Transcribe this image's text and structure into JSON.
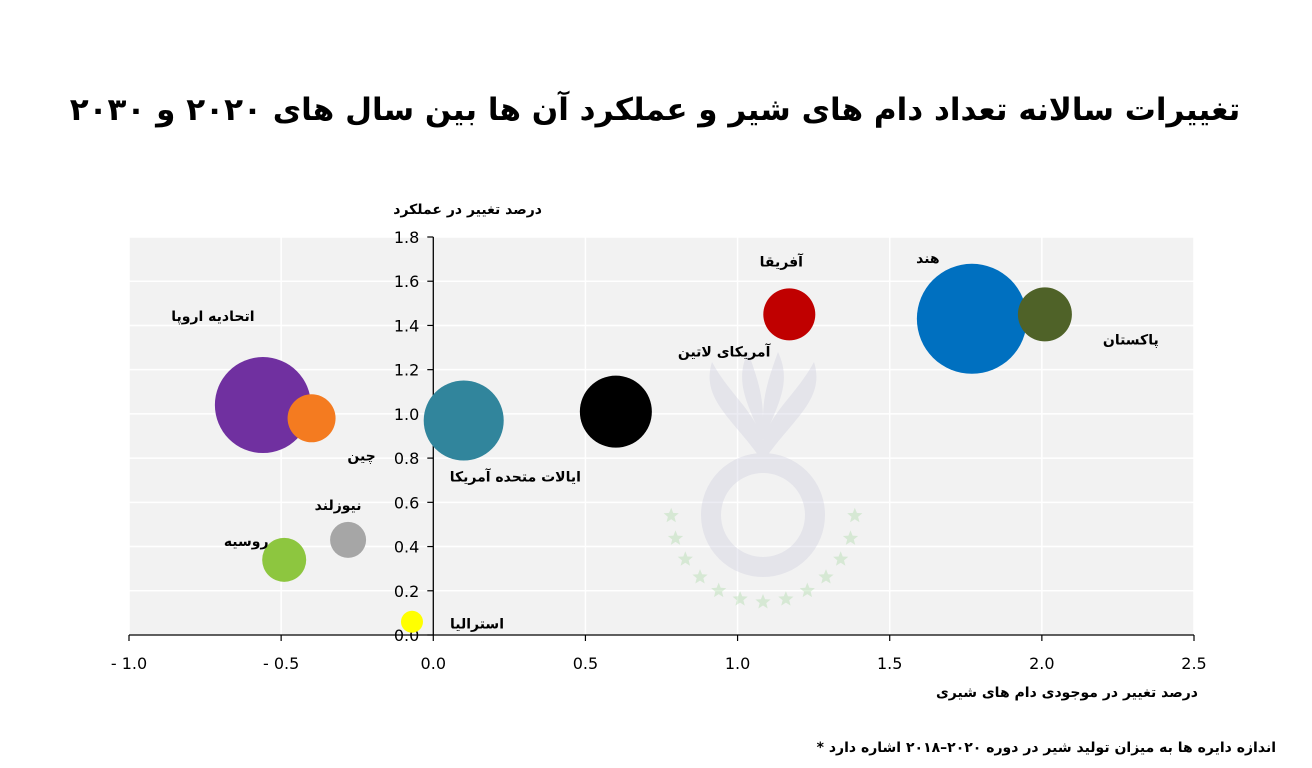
{
  "chart_data": {
    "type": "scatter",
    "subtype": "bubble",
    "title": "تغییرات سالانه  تعداد دام های شیر و عملکرد آن ها بین سال های ۲۰۲۰ و ۲۰۳۰",
    "xlabel": "درصد تغییر در موجودی دام های شیری",
    "ylabel": "درصد تغییر در عملکرد",
    "xlim": [
      -1.0,
      2.5
    ],
    "ylim": [
      0.0,
      1.8
    ],
    "x_ticks": [
      "- 1.0",
      "- 0.5",
      "0.0",
      "0.5",
      "1.0",
      "1.5",
      "2.0",
      "2.5"
    ],
    "y_ticks": [
      "0.0",
      "0.2",
      "0.4",
      "0.6",
      "0.8",
      "1.0",
      "1.2",
      "1.4",
      "1.6",
      "1.8"
    ],
    "grid": true,
    "footnote": "* اندازه دایره ها به میزان تولید شیر در دوره ۲۰۲۰–۲۰۱۸ اشاره دارد",
    "points": [
      {
        "name": "اتحادیه اروپا",
        "x": -0.56,
        "y": 1.04,
        "size": 48,
        "color": "#7030a0"
      },
      {
        "name": "چین",
        "x": -0.4,
        "y": 0.98,
        "size": 24,
        "color": "#f47b20"
      },
      {
        "name": "نیوزلند",
        "x": -0.28,
        "y": 0.43,
        "size": 18,
        "color": "#a6a6a6"
      },
      {
        "name": "روسیه",
        "x": -0.49,
        "y": 0.34,
        "size": 22,
        "color": "#8dc63f"
      },
      {
        "name": "استرالیا",
        "x": -0.07,
        "y": 0.06,
        "size": 11,
        "color": "#ffff00"
      },
      {
        "name": "ایالات متحده آمریکا",
        "x": 0.1,
        "y": 0.97,
        "size": 40,
        "color": "#31859c"
      },
      {
        "name": "آمریکای لاتین",
        "x": 0.6,
        "y": 1.01,
        "size": 36,
        "color": "#000000"
      },
      {
        "name": "آفریقا",
        "x": 1.17,
        "y": 1.45,
        "size": 26,
        "color": "#c00000"
      },
      {
        "name": "هند",
        "x": 1.77,
        "y": 1.43,
        "size": 55,
        "color": "#0070c0"
      },
      {
        "name": "پاکستان",
        "x": 2.01,
        "y": 1.45,
        "size": 27,
        "color": "#4f6228"
      }
    ]
  }
}
